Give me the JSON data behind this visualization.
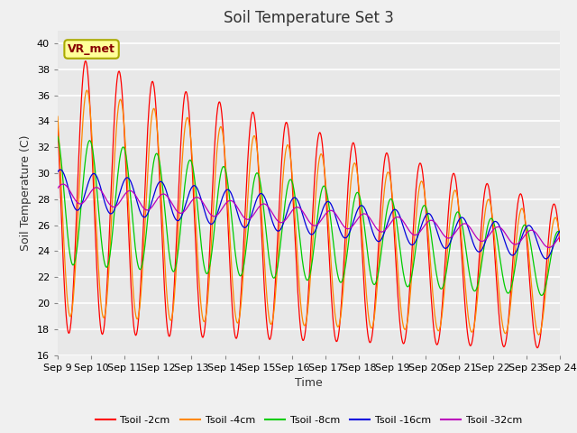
{
  "title": "Soil Temperature Set 3",
  "xlabel": "Time",
  "ylabel": "Soil Temperature (C)",
  "ylim": [
    16,
    41
  ],
  "yticks": [
    16,
    18,
    20,
    22,
    24,
    26,
    28,
    30,
    32,
    34,
    36,
    38,
    40
  ],
  "colors": {
    "Tsoil -2cm": "#ff0000",
    "Tsoil -4cm": "#ff8800",
    "Tsoil -8cm": "#00cc00",
    "Tsoil -16cm": "#0000dd",
    "Tsoil -32cm": "#bb00bb"
  },
  "background_color": "#f0f0f0",
  "plot_bg_color": "#e8e8e8",
  "annotation_text": "VR_met",
  "annotation_bg": "#ffff99",
  "annotation_border": "#aaaa00",
  "x_labels": [
    "Sep 9",
    "Sep 10",
    "Sep 11",
    "Sep 12",
    "Sep 13",
    "Sep 14",
    "Sep 15",
    "Sep 16",
    "Sep 17",
    "Sep 18",
    "Sep 19",
    "Sep 20",
    "Sep 21",
    "Sep 22",
    "Sep 23",
    "Sep 24"
  ],
  "title_fontsize": 12,
  "label_fontsize": 9,
  "tick_fontsize": 8
}
